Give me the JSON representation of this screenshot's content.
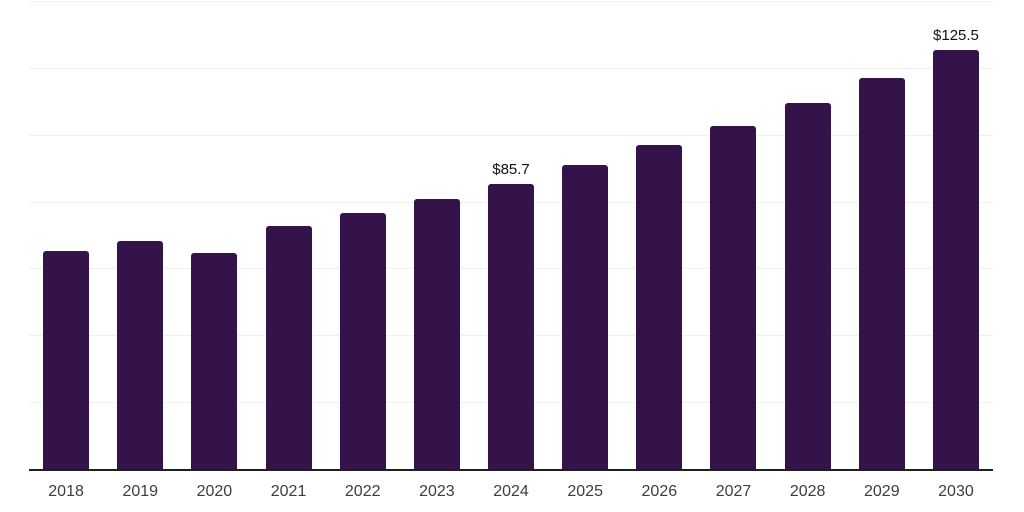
{
  "chart_data": {
    "type": "bar",
    "title": "",
    "xlabel": "",
    "ylabel": "",
    "categories": [
      "2018",
      "2019",
      "2020",
      "2021",
      "2022",
      "2023",
      "2024",
      "2025",
      "2026",
      "2027",
      "2028",
      "2029",
      "2030"
    ],
    "values": [
      65.4,
      68.5,
      65.0,
      73.0,
      76.9,
      81.0,
      85.7,
      91.3,
      97.1,
      103.0,
      109.9,
      117.4,
      125.5
    ],
    "annotations": [
      {
        "category": "2024",
        "text": "$85.7"
      },
      {
        "category": "2030",
        "text": "$125.5"
      }
    ],
    "ylim": [
      0,
      140
    ],
    "grid_step": 20,
    "grid_on": true,
    "legend": "none",
    "colors": {
      "bar": "#331349",
      "grid": "#f0f0f0",
      "axis": "#1f1f1f",
      "tick_label": "#3d3d3d",
      "value_label": "#111111",
      "background": "#ffffff"
    }
  }
}
